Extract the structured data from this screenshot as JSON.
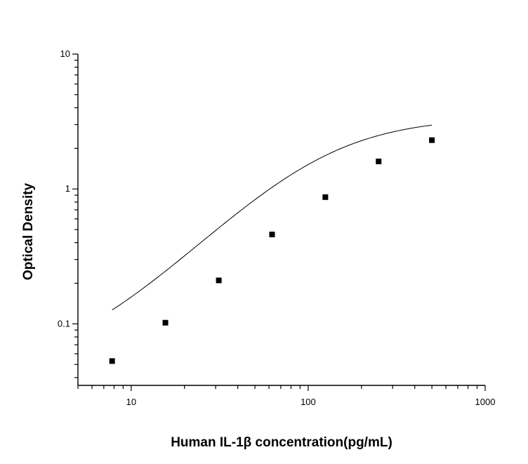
{
  "chart_data": {
    "type": "scatter",
    "title": "",
    "xlabel": "Human IL-1β  concentration(pg/mL)",
    "ylabel": "Optical Density",
    "x_scale": "log",
    "y_scale": "log",
    "xlim": [
      5,
      1000
    ],
    "ylim": [
      0.035,
      10
    ],
    "x_ticks": [
      {
        "value": 10,
        "label": "10"
      },
      {
        "value": 100,
        "label": "100"
      },
      {
        "value": 1000,
        "label": "1000"
      }
    ],
    "y_ticks": [
      {
        "value": 0.1,
        "label": "0.1"
      },
      {
        "value": 1,
        "label": "1"
      },
      {
        "value": 10,
        "label": "10"
      }
    ],
    "grid": false,
    "series": [
      {
        "marker": "square",
        "color": "#000000",
        "x": [
          7.8,
          15.6,
          31.25,
          62.5,
          125,
          250,
          500
        ],
        "y": [
          0.053,
          0.102,
          0.21,
          0.46,
          0.87,
          1.6,
          2.3
        ]
      }
    ],
    "fit_curve": {
      "type": "4-parameter logistic",
      "color": "#000000",
      "x_range": [
        7.8,
        500
      ],
      "params": {
        "A": 0.045,
        "B": 1.35,
        "C": 120,
        "D": 3.4
      }
    }
  }
}
